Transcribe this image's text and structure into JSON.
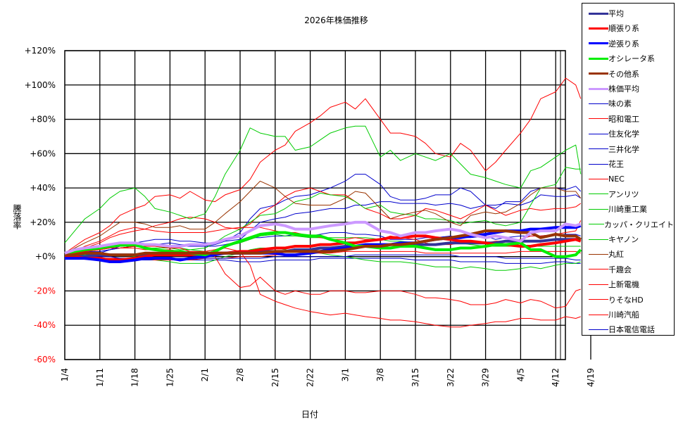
{
  "chart_data": {
    "type": "line",
    "title": "2026年株価推移",
    "xlabel": "日付",
    "ylabel": "騰落率",
    "ylim": [
      -60,
      120
    ],
    "yticks": [
      "+120%",
      "+100%",
      "+80%",
      "+60%",
      "+40%",
      "+20%",
      "+0%",
      "-20%",
      "-40%",
      "-60%"
    ],
    "ytick_values": [
      120,
      100,
      80,
      60,
      40,
      20,
      0,
      -20,
      -40,
      -60
    ],
    "xticks": [
      "1/4",
      "1/11",
      "1/18",
      "1/25",
      "2/1",
      "2/8",
      "2/15",
      "2/22",
      "3/1",
      "3/8",
      "3/15",
      "3/22",
      "3/29",
      "4/5",
      "4/12",
      "4/19"
    ],
    "grid": true,
    "legend_position": "right",
    "x_days": [
      0,
      2,
      4,
      7,
      9,
      11,
      14,
      16,
      18,
      21,
      23,
      25,
      28,
      30,
      32,
      35,
      37,
      39,
      42,
      44,
      46,
      49,
      51,
      53,
      56,
      58,
      60,
      63,
      65,
      67,
      70,
      72,
      74,
      77,
      79,
      81,
      84,
      86,
      88,
      91,
      93,
      95,
      98,
      100,
      102,
      103
    ],
    "series": [
      {
        "name": "平均",
        "color": "#333399",
        "width": 4,
        "values": [
          0,
          0,
          0,
          1,
          1,
          1,
          1,
          1,
          1,
          1,
          1,
          1,
          1,
          2,
          2,
          2,
          2,
          3,
          3,
          3,
          4,
          4,
          5,
          5,
          6,
          6,
          6,
          6,
          7,
          7,
          7,
          7,
          7,
          8,
          8,
          8,
          8,
          8,
          9,
          9,
          9,
          9,
          10,
          10,
          10,
          10
        ]
      },
      {
        "name": "順張り系",
        "color": "#ff0000",
        "width": 4,
        "values": [
          0,
          0,
          -1,
          -1,
          -2,
          -2,
          -1,
          0,
          1,
          1,
          1,
          1,
          2,
          2,
          2,
          3,
          3,
          4,
          5,
          5,
          6,
          6,
          7,
          7,
          8,
          8,
          9,
          10,
          11,
          11,
          12,
          12,
          11,
          10,
          9,
          9,
          8,
          7,
          7,
          6,
          6,
          7,
          8,
          9,
          10,
          9
        ]
      },
      {
        "name": "逆張り系",
        "color": "#0000ff",
        "width": 4,
        "values": [
          -1,
          -1,
          -1,
          -2,
          -3,
          -3,
          -2,
          -1,
          -1,
          -1,
          -2,
          -1,
          0,
          1,
          2,
          2,
          2,
          2,
          2,
          1,
          1,
          2,
          3,
          4,
          5,
          6,
          7,
          7,
          7,
          8,
          8,
          9,
          10,
          11,
          11,
          12,
          13,
          14,
          15,
          15,
          16,
          16,
          17,
          17,
          17,
          18
        ]
      },
      {
        "name": "オシレータ系",
        "color": "#00ee00",
        "width": 4,
        "values": [
          2,
          3,
          4,
          5,
          6,
          7,
          7,
          5,
          4,
          3,
          3,
          2,
          1,
          3,
          6,
          9,
          11,
          13,
          14,
          14,
          13,
          12,
          12,
          10,
          8,
          6,
          6,
          5,
          5,
          6,
          6,
          5,
          4,
          4,
          5,
          5,
          6,
          7,
          7,
          8,
          4,
          4,
          0,
          0,
          1,
          4
        ]
      },
      {
        "name": "その他系",
        "color": "#993300",
        "width": 4,
        "values": [
          1,
          1,
          2,
          2,
          1,
          1,
          1,
          2,
          2,
          2,
          2,
          2,
          2,
          2,
          2,
          2,
          2,
          2,
          3,
          3,
          3,
          3,
          3,
          3,
          4,
          5,
          6,
          6,
          7,
          7,
          8,
          9,
          10,
          11,
          12,
          13,
          15,
          15,
          15,
          14,
          14,
          11,
          13,
          12,
          12,
          10
        ]
      },
      {
        "name": "株価平均",
        "color": "#cc99ff",
        "width": 4,
        "values": [
          2,
          4,
          5,
          6,
          7,
          8,
          8,
          7,
          7,
          6,
          6,
          7,
          7,
          8,
          10,
          12,
          15,
          18,
          19,
          18,
          16,
          16,
          17,
          18,
          19,
          20,
          20,
          15,
          14,
          12,
          14,
          14,
          15,
          16,
          15,
          13,
          11,
          12,
          11,
          9,
          14,
          15,
          15,
          19,
          18,
          19
        ]
      },
      {
        "name": "味の素",
        "color": "#0000cc",
        "width": 1,
        "values": [
          0,
          1,
          2,
          3,
          4,
          6,
          8,
          9,
          10,
          10,
          9,
          9,
          8,
          8,
          9,
          10,
          15,
          20,
          22,
          23,
          25,
          26,
          27,
          28,
          28,
          30,
          30,
          32,
          32,
          31,
          31,
          31,
          30,
          31,
          30,
          28,
          30,
          30,
          31,
          30,
          32,
          36,
          35,
          35,
          36,
          34
        ]
      },
      {
        "name": "昭和電工",
        "color": "#ff0000",
        "width": 1,
        "values": [
          2,
          6,
          10,
          14,
          18,
          24,
          28,
          30,
          35,
          36,
          34,
          38,
          33,
          32,
          36,
          39,
          45,
          55,
          62,
          65,
          73,
          78,
          82,
          87,
          90,
          86,
          92,
          80,
          72,
          72,
          70,
          66,
          60,
          58,
          66,
          62,
          50,
          55,
          62,
          72,
          80,
          92,
          96,
          104,
          100,
          92
        ]
      },
      {
        "name": "住友化学",
        "color": "#0000cc",
        "width": 1,
        "values": [
          0,
          1,
          1,
          2,
          4,
          5,
          6,
          7,
          7,
          6,
          6,
          6,
          6,
          6,
          7,
          9,
          11,
          11,
          12,
          12,
          13,
          12,
          13,
          14,
          14,
          13,
          13,
          12,
          10,
          10,
          10,
          11,
          11,
          12,
          11,
          11,
          12,
          10,
          11,
          12,
          12,
          12,
          13,
          13,
          13,
          12
        ]
      },
      {
        "name": "三井化学",
        "color": "#0000cc",
        "width": 1,
        "values": [
          0,
          -1,
          -1,
          -1,
          -1,
          -1,
          -2,
          -2,
          -2,
          -2,
          -2,
          -2,
          -2,
          -2,
          -2,
          -3,
          -3,
          -3,
          -2,
          -2,
          -2,
          -2,
          -1,
          -1,
          -1,
          -1,
          -1,
          -1,
          -1,
          -1,
          -2,
          -2,
          -2,
          -2,
          -3,
          -3,
          -3,
          -3,
          -4,
          -4,
          -4,
          -4,
          -3,
          -3,
          -4,
          -4
        ]
      },
      {
        "name": "花王",
        "color": "#0000cc",
        "width": 1,
        "values": [
          1,
          2,
          3,
          3,
          4,
          5,
          6,
          7,
          7,
          8,
          7,
          7,
          6,
          7,
          9,
          14,
          22,
          28,
          30,
          33,
          35,
          36,
          38,
          40,
          44,
          48,
          48,
          42,
          35,
          33,
          33,
          34,
          36,
          36,
          40,
          38,
          30,
          28,
          32,
          32,
          38,
          40,
          40,
          39,
          41,
          38
        ]
      },
      {
        "name": "NEC",
        "color": "#ff0000",
        "width": 1,
        "values": [
          1,
          3,
          5,
          8,
          11,
          13,
          15,
          16,
          18,
          20,
          22,
          23,
          22,
          20,
          17,
          16,
          19,
          25,
          30,
          35,
          38,
          40,
          38,
          36,
          36,
          32,
          28,
          25,
          22,
          22,
          24,
          28,
          27,
          24,
          22,
          25,
          30,
          27,
          24,
          27,
          28,
          27,
          28,
          28,
          29,
          31
        ]
      },
      {
        "name": "アンリツ",
        "color": "#00cc00",
        "width": 1,
        "values": [
          8,
          15,
          22,
          28,
          34,
          38,
          40,
          35,
          28,
          26,
          24,
          22,
          25,
          35,
          48,
          62,
          75,
          72,
          70,
          70,
          62,
          64,
          68,
          72,
          75,
          76,
          76,
          58,
          62,
          56,
          60,
          58,
          56,
          60,
          54,
          48,
          46,
          44,
          42,
          40,
          50,
          52,
          58,
          62,
          65,
          48
        ]
      },
      {
        "name": "川崎重工業",
        "color": "#00cc00",
        "width": 1,
        "values": [
          1,
          2,
          3,
          4,
          5,
          5,
          6,
          6,
          6,
          5,
          5,
          4,
          3,
          4,
          6,
          8,
          10,
          12,
          13,
          12,
          12,
          11,
          11,
          11,
          11,
          11,
          11,
          10,
          9,
          9,
          8,
          7,
          7,
          8,
          8,
          7,
          6,
          6,
          6,
          6,
          6,
          6,
          6,
          6,
          6,
          6
        ]
      },
      {
        "name": "カッパ・クリエイト",
        "color": "#00cc00",
        "width": 1,
        "values": [
          0,
          0,
          1,
          1,
          1,
          1,
          0,
          -1,
          -2,
          -3,
          -4,
          -4,
          -4,
          -2,
          0,
          2,
          4,
          5,
          5,
          4,
          3,
          3,
          2,
          1,
          0,
          -1,
          -2,
          -3,
          -3,
          -3,
          -4,
          -5,
          -6,
          -6,
          -7,
          -6,
          -7,
          -8,
          -8,
          -7,
          -6,
          -7,
          -5,
          -4,
          -4,
          -3
        ]
      },
      {
        "name": "キヤノン",
        "color": "#00cc00",
        "width": 1,
        "values": [
          2,
          3,
          4,
          5,
          5,
          6,
          6,
          5,
          5,
          5,
          4,
          4,
          5,
          8,
          12,
          16,
          20,
          24,
          25,
          28,
          32,
          34,
          37,
          36,
          35,
          32,
          28,
          30,
          26,
          25,
          24,
          22,
          22,
          21,
          19,
          20,
          21,
          19,
          18,
          20,
          30,
          40,
          42,
          52,
          51,
          51
        ]
      },
      {
        "name": "丸紅",
        "color": "#993300",
        "width": 1,
        "values": [
          2,
          5,
          8,
          12,
          16,
          20,
          20,
          19,
          17,
          17,
          18,
          16,
          16,
          20,
          25,
          32,
          38,
          44,
          40,
          35,
          31,
          30,
          30,
          30,
          34,
          38,
          37,
          28,
          22,
          24,
          26,
          27,
          25,
          20,
          18,
          24,
          26,
          25,
          26,
          31,
          36,
          40,
          40,
          38,
          38,
          34
        ]
      },
      {
        "name": "千趣会",
        "color": "#ff0000",
        "width": 1,
        "values": [
          1,
          3,
          6,
          9,
          12,
          15,
          17,
          16,
          15,
          14,
          14,
          14,
          14,
          15,
          16,
          17,
          17,
          17,
          15,
          14,
          14,
          12,
          11,
          10,
          10,
          11,
          10,
          10,
          12,
          11,
          10,
          8,
          7,
          7,
          8,
          8,
          8,
          9,
          9,
          10,
          12,
          12,
          13,
          14,
          15,
          21
        ]
      },
      {
        "name": "上新電機",
        "color": "#ff0000",
        "width": 1,
        "values": [
          1,
          2,
          3,
          4,
          5,
          5,
          6,
          6,
          6,
          5,
          5,
          3,
          2,
          0,
          -10,
          -18,
          -17,
          -12,
          -20,
          -22,
          -20,
          -22,
          -22,
          -20,
          -20,
          -21,
          -21,
          -20,
          -20,
          -20,
          -22,
          -24,
          -24,
          -25,
          -26,
          -28,
          -28,
          -27,
          -25,
          -27,
          -25,
          -26,
          -30,
          -29,
          -20,
          -19
        ]
      },
      {
        "name": "りそなHD",
        "color": "#ff0000",
        "width": 1,
        "values": [
          1,
          2,
          3,
          4,
          5,
          5,
          5,
          4,
          4,
          4,
          3,
          3,
          3,
          4,
          5,
          3,
          -5,
          -22,
          -26,
          -28,
          -30,
          -32,
          -33,
          -34,
          -33,
          -34,
          -35,
          -36,
          -37,
          -37,
          -38,
          -39,
          -40,
          -41,
          -41,
          -40,
          -39,
          -38,
          -38,
          -36,
          -36,
          -37,
          -37,
          -35,
          -36,
          -35
        ]
      },
      {
        "name": "川崎汽船",
        "color": "#ff0000",
        "width": 1,
        "values": [
          0,
          0,
          -1,
          -1,
          -1,
          -1,
          -1,
          -1,
          -2,
          -2,
          -2,
          -2,
          -1,
          -1,
          -1,
          0,
          0,
          0,
          1,
          1,
          1,
          2,
          2,
          2,
          3,
          3,
          3,
          3,
          3,
          3,
          3,
          2,
          2,
          2,
          2,
          2,
          2,
          2,
          2,
          3,
          3,
          3,
          3,
          3,
          3,
          2
        ]
      },
      {
        "name": "日本電信電話",
        "color": "#0000cc",
        "width": 1,
        "values": [
          0,
          0,
          0,
          0,
          0,
          -1,
          -1,
          -1,
          -1,
          -1,
          -1,
          -1,
          -1,
          -1,
          -1,
          -1,
          -1,
          -1,
          0,
          0,
          0,
          0,
          0,
          0,
          0,
          1,
          1,
          1,
          1,
          1,
          1,
          1,
          1,
          1,
          0,
          0,
          0,
          0,
          -1,
          -1,
          -1,
          -1,
          -1,
          -1,
          -2,
          -2
        ]
      }
    ]
  },
  "legend": {
    "items": [
      {
        "label": "平均",
        "color": "#333399",
        "width": 3
      },
      {
        "label": "順張り系",
        "color": "#ff0000",
        "width": 3
      },
      {
        "label": "逆張り系",
        "color": "#0000ff",
        "width": 3
      },
      {
        "label": "オシレータ系",
        "color": "#00ee00",
        "width": 3
      },
      {
        "label": "その他系",
        "color": "#993300",
        "width": 3
      },
      {
        "label": "株価平均",
        "color": "#cc99ff",
        "width": 3
      },
      {
        "label": "味の素",
        "color": "#0000cc",
        "width": 1
      },
      {
        "label": "昭和電工",
        "color": "#ff0000",
        "width": 1
      },
      {
        "label": "住友化学",
        "color": "#0000cc",
        "width": 1
      },
      {
        "label": "三井化学",
        "color": "#0000cc",
        "width": 1
      },
      {
        "label": "花王",
        "color": "#0000cc",
        "width": 1
      },
      {
        "label": "NEC",
        "color": "#ff0000",
        "width": 1
      },
      {
        "label": "アンリツ",
        "color": "#00cc00",
        "width": 1
      },
      {
        "label": "川崎重工業",
        "color": "#00cc00",
        "width": 1
      },
      {
        "label": "カッパ・クリエイト",
        "color": "#00cc00",
        "width": 1
      },
      {
        "label": "キヤノン",
        "color": "#00cc00",
        "width": 1
      },
      {
        "label": "丸紅",
        "color": "#993300",
        "width": 1
      },
      {
        "label": "千趣会",
        "color": "#ff0000",
        "width": 1
      },
      {
        "label": "上新電機",
        "color": "#ff0000",
        "width": 1
      },
      {
        "label": "りそなHD",
        "color": "#ff0000",
        "width": 1
      },
      {
        "label": "川崎汽船",
        "color": "#ff0000",
        "width": 1
      },
      {
        "label": "日本電信電話",
        "color": "#0000cc",
        "width": 1
      }
    ]
  },
  "colors": {
    "negative_tick": "#ff0000",
    "positive_tick": "#000000",
    "grid": "#000000"
  }
}
